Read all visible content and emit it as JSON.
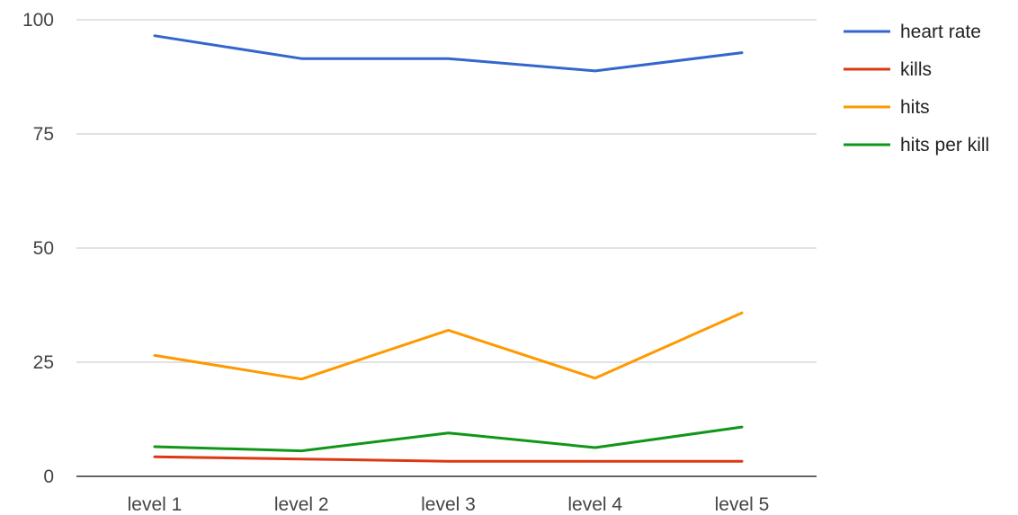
{
  "chart_data": {
    "type": "line",
    "title": "",
    "xlabel": "",
    "ylabel": "",
    "categories": [
      "level 1",
      "level 2",
      "level 3",
      "level 4",
      "level 5"
    ],
    "ylim": [
      0,
      100
    ],
    "yticks": [
      0,
      25,
      50,
      75,
      100
    ],
    "grid": true,
    "legend_position": "right",
    "series": [
      {
        "name": "heart rate",
        "color": "#3366cc",
        "values": [
          96.5,
          91.5,
          91.5,
          88.8,
          92.8
        ]
      },
      {
        "name": "kills",
        "color": "#dc3912",
        "values": [
          4.3,
          3.8,
          3.3,
          3.3,
          3.3
        ]
      },
      {
        "name": "hits",
        "color": "#ff9900",
        "values": [
          26.5,
          21.3,
          32.0,
          21.5,
          35.8
        ]
      },
      {
        "name": "hits per kill",
        "color": "#109618",
        "values": [
          6.5,
          5.6,
          9.5,
          6.3,
          10.8
        ]
      }
    ]
  }
}
